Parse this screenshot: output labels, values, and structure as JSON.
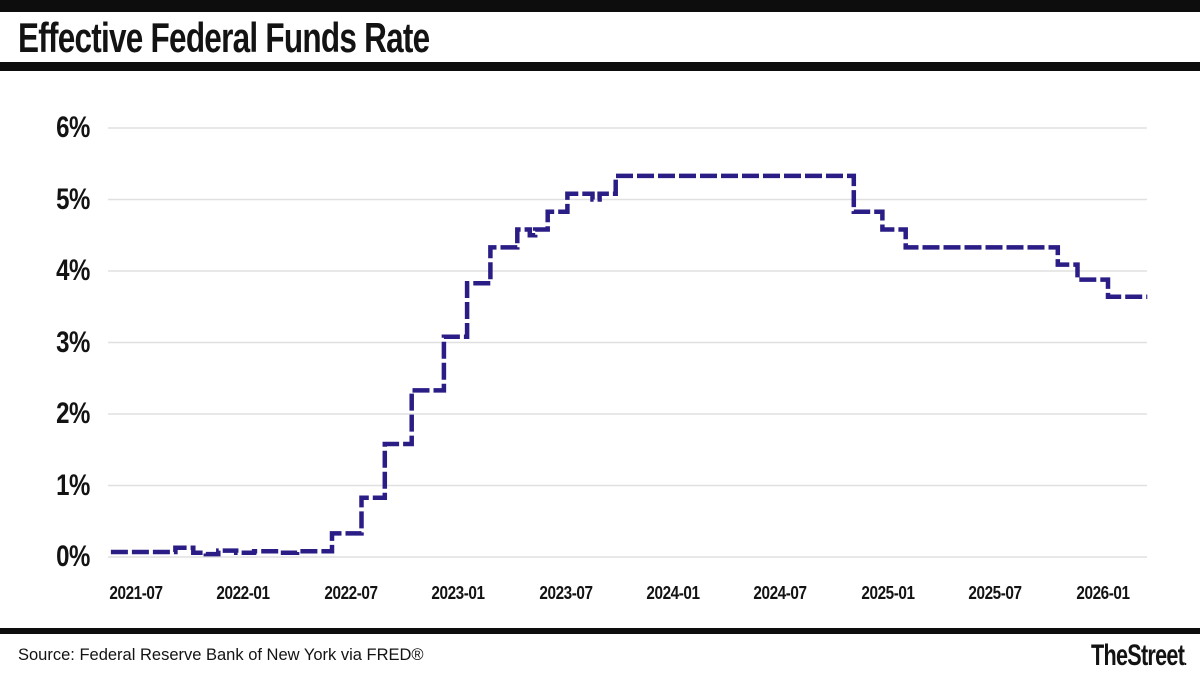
{
  "header": {
    "title": "Effective Federal Funds Rate"
  },
  "theme": {
    "bar_color": "#0d0d0d",
    "text_color": "#131313"
  },
  "footer": {
    "source": "Source: Federal Reserve Bank of New York via FRED®",
    "brand": "TheStreet",
    "brand_suffix": "."
  },
  "chart_data": {
    "type": "line",
    "title": "Effective Federal Funds Rate",
    "line_style": "stepped-dashed",
    "line_color": "#2a1d85",
    "grid_color": "#e0e0e0",
    "legend": "none",
    "grid": "horizontal-only",
    "ylabel": "",
    "xlabel": "",
    "ylim": [
      0,
      6
    ],
    "y_ticks": [
      {
        "label": "0%",
        "value": 0
      },
      {
        "label": "1%",
        "value": 1
      },
      {
        "label": "2%",
        "value": 2
      },
      {
        "label": "3%",
        "value": 3
      },
      {
        "label": "4%",
        "value": 4
      },
      {
        "label": "5%",
        "value": 5
      },
      {
        "label": "6%",
        "value": 6
      }
    ],
    "x_ticks": [
      {
        "label": "2021-07",
        "m": 0
      },
      {
        "label": "2022-01",
        "m": 6
      },
      {
        "label": "2022-07",
        "m": 12
      },
      {
        "label": "2023-01",
        "m": 18
      },
      {
        "label": "2023-07",
        "m": 24
      },
      {
        "label": "2024-01",
        "m": 30
      },
      {
        "label": "2024-07",
        "m": 36
      },
      {
        "label": "2025-01",
        "m": 42
      },
      {
        "label": "2025-07",
        "m": 48
      },
      {
        "label": "2026-01",
        "m": 54
      }
    ],
    "x_unit": "months since 2021-07",
    "series": [
      {
        "name": "Effective Federal Funds Rate (%)",
        "step": true,
        "points": [
          [
            -1.4,
            0.07
          ],
          [
            2.2,
            0.13
          ],
          [
            3.2,
            0.06
          ],
          [
            3.9,
            0.04
          ],
          [
            4.6,
            0.09
          ],
          [
            5.6,
            0.06
          ],
          [
            6.6,
            0.08
          ],
          [
            8.0,
            0.06
          ],
          [
            9.0,
            0.08
          ],
          [
            10.95,
            0.33
          ],
          [
            12.6,
            0.83
          ],
          [
            13.9,
            1.58
          ],
          [
            15.4,
            2.33
          ],
          [
            17.2,
            3.08
          ],
          [
            18.5,
            3.83
          ],
          [
            19.8,
            4.33
          ],
          [
            21.3,
            4.58
          ],
          [
            22.0,
            4.5
          ],
          [
            22.3,
            4.58
          ],
          [
            23.0,
            4.83
          ],
          [
            24.1,
            5.08
          ],
          [
            25.5,
            5.0
          ],
          [
            25.9,
            5.08
          ],
          [
            26.8,
            5.33
          ],
          [
            40.1,
            4.83
          ],
          [
            41.7,
            4.58
          ],
          [
            43.0,
            4.33
          ],
          [
            51.5,
            4.09
          ],
          [
            52.6,
            3.88
          ],
          [
            54.3,
            3.64
          ],
          [
            56.5,
            3.64
          ]
        ]
      }
    ]
  }
}
